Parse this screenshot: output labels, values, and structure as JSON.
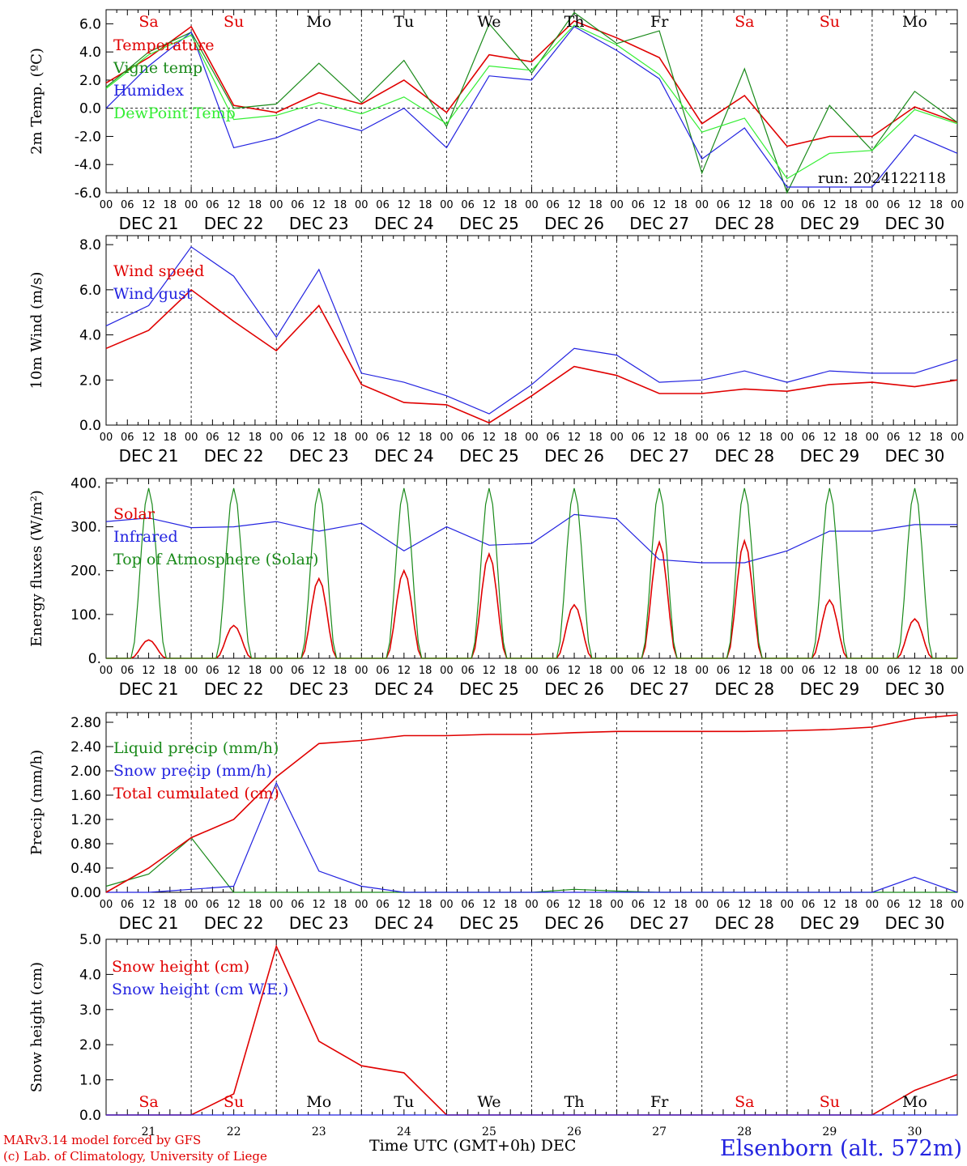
{
  "chart_data": [
    {
      "type": "line",
      "ylabel": "2m Temp. (ºC)",
      "ylim": [
        -6,
        7
      ],
      "yticks": [
        "-6.0",
        "-4.0",
        "-2.0",
        "0.0",
        "2.0",
        "4.0",
        "6.0"
      ],
      "reference_line": 0,
      "note": "run: 2024122118",
      "x": [
        "21 00",
        "21 12",
        "22 00",
        "22 12",
        "23 00",
        "23 12",
        "24 00",
        "24 12",
        "25 00",
        "25 12",
        "26 00",
        "26 12",
        "27 00",
        "27 12",
        "28 00",
        "28 12",
        "29 00",
        "29 12",
        "30 00",
        "30 12",
        "31 00"
      ],
      "series": [
        {
          "name": "Temperature",
          "color": "#e00000",
          "values": [
            1.8,
            3.6,
            5.8,
            0.2,
            -0.3,
            1.1,
            0.3,
            2.0,
            -0.3,
            3.8,
            3.3,
            6.2,
            5.0,
            3.6,
            -1.1,
            0.9,
            -2.7,
            -2.0,
            -2.0,
            0.1,
            -1.0
          ]
        },
        {
          "name": "Vigne temp",
          "color": "#1a8a1a",
          "values": [
            1.5,
            4.0,
            5.4,
            0.0,
            0.3,
            3.2,
            0.4,
            3.4,
            -1.3,
            6.0,
            2.5,
            6.8,
            4.6,
            5.5,
            -4.6,
            2.8,
            -6.0,
            0.2,
            -3.0,
            1.2,
            -1.0
          ]
        },
        {
          "name": "Humidex",
          "color": "#2323e0",
          "values": [
            0.0,
            3.0,
            5.4,
            -2.8,
            -2.1,
            -0.8,
            -1.6,
            0.0,
            -2.8,
            2.3,
            2.0,
            5.8,
            4.1,
            2.1,
            -3.6,
            -1.4,
            -5.6,
            -5.6,
            -5.6,
            -1.9,
            -3.2
          ]
        },
        {
          "name": "DewPoint Temp",
          "color": "#33ee33",
          "values": [
            1.4,
            3.8,
            5.2,
            -0.8,
            -0.5,
            0.4,
            -0.4,
            0.8,
            -1.1,
            3.0,
            2.7,
            5.9,
            4.5,
            2.4,
            -1.7,
            -0.7,
            -5.0,
            -3.2,
            -3.0,
            -0.1,
            -1.1
          ]
        }
      ]
    },
    {
      "type": "line",
      "ylabel": "10m Wind (m/s)",
      "ylim": [
        0,
        8.4
      ],
      "yticks": [
        "0.0",
        "2.0",
        "4.0",
        "6.0",
        "8.0"
      ],
      "reference_line": 5,
      "x": [
        "21 00",
        "21 12",
        "22 00",
        "22 12",
        "23 00",
        "23 12",
        "24 00",
        "24 12",
        "25 00",
        "25 12",
        "26 00",
        "26 12",
        "27 00",
        "27 12",
        "28 00",
        "28 12",
        "29 00",
        "29 12",
        "30 00",
        "30 12",
        "31 00"
      ],
      "series": [
        {
          "name": "Wind speed",
          "color": "#e00000",
          "values": [
            3.4,
            4.2,
            6.0,
            4.6,
            3.3,
            5.3,
            1.8,
            1.0,
            0.9,
            0.1,
            1.3,
            2.6,
            2.2,
            1.4,
            1.4,
            1.6,
            1.5,
            1.8,
            1.9,
            1.7,
            2.0
          ]
        },
        {
          "name": "Wind gust",
          "color": "#2323e0",
          "values": [
            4.4,
            5.3,
            7.9,
            6.6,
            3.9,
            6.9,
            2.3,
            1.9,
            1.3,
            0.5,
            1.8,
            3.4,
            3.1,
            1.9,
            2.0,
            2.4,
            1.9,
            2.4,
            2.3,
            2.3,
            2.9
          ]
        }
      ]
    },
    {
      "type": "line",
      "ylabel": "Energy fluxes (W/m²)",
      "ylim": [
        0,
        410
      ],
      "yticks": [
        "0.",
        "100.",
        "200.",
        "300.",
        "400."
      ],
      "x": [
        "21 00",
        "21 12",
        "22 00",
        "22 12",
        "23 00",
        "23 12",
        "24 00",
        "24 12",
        "25 00",
        "25 12",
        "26 00",
        "26 12",
        "27 00",
        "27 12",
        "28 00",
        "28 12",
        "29 00",
        "29 12",
        "30 00",
        "30 12",
        "31 00"
      ],
      "solar_noon_peaks": [
        42,
        75,
        182,
        200,
        238,
        122,
        265,
        268,
        133,
        90
      ],
      "toa_noon_peak": 388,
      "series": [
        {
          "name": "Solar",
          "color": "#e00000"
        },
        {
          "name": "Infrared",
          "color": "#2323e0",
          "values": [
            312,
            320,
            298,
            300,
            312,
            290,
            308,
            245,
            300,
            258,
            262,
            328,
            318,
            225,
            218,
            218,
            245,
            290,
            290,
            305,
            305
          ]
        },
        {
          "name": "Top of Atmosphere (Solar)",
          "color": "#1a8a1a"
        }
      ]
    },
    {
      "type": "line",
      "ylabel": "Precip (mm/h)",
      "ylim": [
        0,
        2.96
      ],
      "yticks": [
        "0.00",
        "0.40",
        "0.80",
        "1.20",
        "1.60",
        "2.00",
        "2.40",
        "2.80"
      ],
      "x": [
        "21 00",
        "21 12",
        "22 00",
        "22 12",
        "23 00",
        "23 12",
        "24 00",
        "24 12",
        "25 00",
        "25 12",
        "26 00",
        "26 12",
        "27 00",
        "27 12",
        "28 00",
        "28 12",
        "29 00",
        "29 12",
        "30 00",
        "30 12",
        "31 00"
      ],
      "series": [
        {
          "name": "Liquid precip (mm/h)",
          "color": "#1a8a1a",
          "values": [
            0.1,
            0.3,
            0.9,
            0.0,
            0.0,
            0.0,
            0.0,
            0.0,
            0.0,
            0.0,
            0.0,
            0.05,
            0.02,
            0.0,
            0.0,
            0.0,
            0.0,
            0.0,
            0.0,
            0.0,
            0.0
          ]
        },
        {
          "name": "Snow precip (mm/h)",
          "color": "#2323e0",
          "values": [
            0.0,
            0.0,
            0.05,
            0.1,
            1.8,
            0.35,
            0.1,
            0.0,
            0.0,
            0.0,
            0.0,
            0.0,
            0.0,
            0.0,
            0.0,
            0.0,
            0.0,
            0.0,
            0.0,
            0.25,
            0.0
          ]
        },
        {
          "name": "Total cumulated (cm)",
          "color": "#e00000",
          "values": [
            0.0,
            0.4,
            0.9,
            1.2,
            1.9,
            2.45,
            2.5,
            2.58,
            2.58,
            2.6,
            2.6,
            2.63,
            2.65,
            2.65,
            2.65,
            2.65,
            2.66,
            2.68,
            2.72,
            2.86,
            2.92
          ]
        }
      ]
    },
    {
      "type": "line",
      "ylabel": "Snow height (cm)",
      "ylim": [
        0,
        5.0
      ],
      "yticks": [
        "0.0",
        "1.0",
        "2.0",
        "3.0",
        "4.0",
        "5.0"
      ],
      "x": [
        "21 00",
        "21 12",
        "22 00",
        "22 12",
        "23 00",
        "23 12",
        "24 00",
        "24 12",
        "25 00",
        "25 12",
        "26 00",
        "26 12",
        "27 00",
        "27 12",
        "28 00",
        "28 12",
        "29 00",
        "29 12",
        "30 00",
        "30 12",
        "31 00"
      ],
      "series": [
        {
          "name": "Snow height (cm)",
          "color": "#e00000",
          "values": [
            0,
            0,
            0,
            0.6,
            4.8,
            2.1,
            1.4,
            1.2,
            0,
            0,
            0,
            0,
            0,
            0,
            0,
            0,
            0,
            0,
            0,
            0.7,
            1.15
          ]
        },
        {
          "name": "Snow height (cm W.E.)",
          "color": "#2323e0",
          "values": [
            0,
            0,
            0,
            0,
            0,
            0,
            0,
            0,
            0,
            0,
            0,
            0,
            0,
            0,
            0,
            0,
            0,
            0,
            0,
            0,
            0
          ]
        }
      ]
    }
  ],
  "weekdays": [
    {
      "label": "Sa",
      "color": "#e00000"
    },
    {
      "label": "Su",
      "color": "#e00000"
    },
    {
      "label": "Mo",
      "color": "#000000"
    },
    {
      "label": "Tu",
      "color": "#000000"
    },
    {
      "label": "We",
      "color": "#000000"
    },
    {
      "label": "Th",
      "color": "#000000"
    },
    {
      "label": "Fr",
      "color": "#000000"
    },
    {
      "label": "Sa",
      "color": "#e00000"
    },
    {
      "label": "Su",
      "color": "#e00000"
    },
    {
      "label": "Mo",
      "color": "#000000"
    }
  ],
  "hour_ticks": [
    "00",
    "06",
    "12",
    "18"
  ],
  "hour_end": "00",
  "dates": [
    "DEC 21",
    "DEC 22",
    "DEC 23",
    "DEC 24",
    "DEC 25",
    "DEC 26",
    "DEC 27",
    "DEC 28",
    "DEC 29",
    "DEC 30"
  ],
  "day_numbers": [
    "21",
    "22",
    "23",
    "24",
    "25",
    "26",
    "27",
    "28",
    "29",
    "30"
  ],
  "footer": {
    "credit_line1": "MARv3.14 model forced by GFS",
    "credit_line2": "(c) Lab. of Climatology, University of Liege",
    "xtitle": "Time UTC (GMT+0h) DEC",
    "station": "Elsenborn (alt. 572m)"
  }
}
